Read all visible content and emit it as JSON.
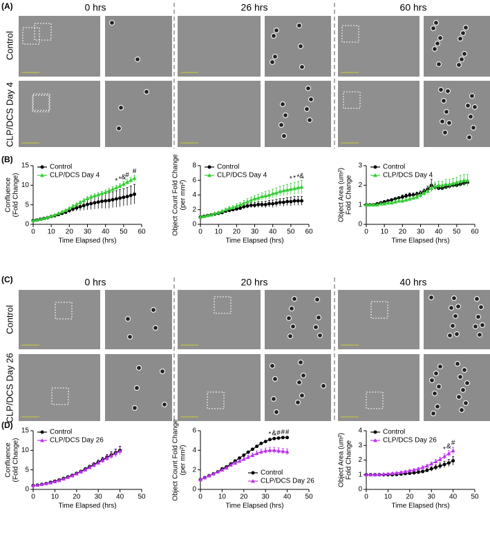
{
  "panels": [
    "(A)",
    "(B)",
    "(C)",
    "(D)"
  ],
  "headers_a": [
    "0 hrs",
    "26 hrs",
    "60 hrs"
  ],
  "headers_c": [
    "0 hrs",
    "20 hrs",
    "40 hrs"
  ],
  "rows_a": [
    "Control",
    "CLP/DCS Day 4"
  ],
  "rows_c": [
    "Control",
    "CLP/DCS Day 26"
  ],
  "chart_data": [
    {
      "type": "line",
      "y_label": [
        "Confluence",
        "(Fold Change)"
      ],
      "x_label": "Time Elapsed (hrs)",
      "x": [
        0,
        2,
        4,
        6,
        8,
        10,
        12,
        14,
        16,
        18,
        20,
        22,
        24,
        26,
        28,
        30,
        32,
        34,
        36,
        38,
        40,
        42,
        44,
        46,
        48,
        50,
        52,
        54,
        56
      ],
      "xlim": [
        0,
        60
      ],
      "xticks": [
        0,
        10,
        20,
        30,
        40,
        50,
        60
      ],
      "ylim": [
        0,
        15
      ],
      "yticks": [
        0,
        5,
        10,
        15
      ],
      "legend": "upper left",
      "series": [
        {
          "name": "Control",
          "color": "#000000",
          "marker": "circle",
          "values": [
            1,
            1.1,
            1.3,
            1.5,
            1.7,
            2,
            2.2,
            2.5,
            2.8,
            3.1,
            3.5,
            3.9,
            4.2,
            4.5,
            4.8,
            5.1,
            5.3,
            5.5,
            5.7,
            5.9,
            6,
            6.1,
            6.3,
            6.5,
            6.7,
            6.9,
            7.1,
            7.4,
            7.7
          ],
          "errors": [
            0.1,
            0.1,
            0.1,
            0.1,
            0.1,
            0.2,
            0.2,
            0.3,
            0.3,
            0.4,
            0.5,
            0.6,
            0.8,
            1,
            1.2,
            1.4,
            1.5,
            1.6,
            1.7,
            1.8,
            1.9,
            2,
            2,
            2.1,
            2.2,
            2.2,
            2.3,
            2.4,
            2.5
          ]
        },
        {
          "name": "CLP/DCS Day 4",
          "color": "#33cc33",
          "marker": "triangle",
          "values": [
            1,
            1.1,
            1.3,
            1.5,
            1.8,
            2.1,
            2.4,
            2.8,
            3.2,
            3.6,
            4.1,
            4.6,
            5.1,
            5.6,
            6.1,
            6.6,
            7,
            7.3,
            7.6,
            7.9,
            8.2,
            8.6,
            9,
            9.4,
            9.8,
            10.3,
            10.8,
            11.3,
            11.8
          ],
          "errors": [
            0.1,
            0.1,
            0.1,
            0.1,
            0.1,
            0.2,
            0.2,
            0.2,
            0.3,
            0.3,
            0.3,
            0.4,
            0.4,
            0.4,
            0.5,
            0.5,
            0.5,
            0.5,
            0.5,
            0.5,
            0.6,
            0.6,
            0.6,
            0.6,
            0.6,
            0.7,
            0.7,
            0.7,
            0.7
          ]
        }
      ],
      "annotations": [
        {
          "x": 46,
          "label": "*"
        },
        {
          "x": 48,
          "label": "*"
        },
        {
          "x": 50,
          "label": "&"
        },
        {
          "x": 52,
          "label": "#"
        },
        {
          "x": 56,
          "label": "#"
        }
      ]
    },
    {
      "type": "line",
      "y_label": [
        "Object Count Fold Change",
        "(per mm²)"
      ],
      "x_label": "Time Elapsed (hrs)",
      "x": [
        0,
        2,
        4,
        6,
        8,
        10,
        12,
        14,
        16,
        18,
        20,
        22,
        24,
        26,
        28,
        30,
        32,
        34,
        36,
        38,
        40,
        42,
        44,
        46,
        48,
        50,
        52,
        54,
        56
      ],
      "xlim": [
        0,
        60
      ],
      "xticks": [
        0,
        10,
        20,
        30,
        40,
        50,
        60
      ],
      "ylim": [
        0,
        8
      ],
      "yticks": [
        0,
        2,
        4,
        6,
        8
      ],
      "legend": "upper left",
      "series": [
        {
          "name": "Control",
          "color": "#000000",
          "marker": "circle",
          "values": [
            1,
            1.1,
            1.2,
            1.3,
            1.4,
            1.5,
            1.6,
            1.8,
            1.9,
            2,
            2.1,
            2.2,
            2.4,
            2.5,
            2.6,
            2.6,
            2.7,
            2.7,
            2.7,
            2.8,
            2.8,
            2.9,
            3,
            3,
            3.1,
            3.1,
            3.2,
            3.2,
            3.2
          ],
          "errors": [
            0.05,
            0.05,
            0.05,
            0.1,
            0.1,
            0.1,
            0.1,
            0.15,
            0.15,
            0.2,
            0.2,
            0.25,
            0.3,
            0.3,
            0.35,
            0.35,
            0.4,
            0.4,
            0.45,
            0.45,
            0.5,
            0.5,
            0.5,
            0.55,
            0.55,
            0.6,
            0.6,
            0.6,
            0.6
          ]
        },
        {
          "name": "CLP/DCS Day 4",
          "color": "#33cc33",
          "marker": "triangle",
          "values": [
            1,
            1.1,
            1.2,
            1.3,
            1.5,
            1.6,
            1.8,
            2,
            2.2,
            2.3,
            2.5,
            2.7,
            2.9,
            3.1,
            3.3,
            3.5,
            3.6,
            3.8,
            3.9,
            4,
            4.2,
            4.3,
            4.5,
            4.6,
            4.7,
            4.8,
            4.9,
            5,
            5.1
          ],
          "errors": [
            0.05,
            0.05,
            0.1,
            0.1,
            0.1,
            0.15,
            0.15,
            0.2,
            0.2,
            0.25,
            0.3,
            0.3,
            0.35,
            0.4,
            0.4,
            0.45,
            0.5,
            0.5,
            0.55,
            0.6,
            0.6,
            0.65,
            0.7,
            0.7,
            0.75,
            0.8,
            0.8,
            0.85,
            0.9
          ]
        }
      ],
      "annotations": [
        {
          "x": 50,
          "label": "*"
        },
        {
          "x": 52,
          "label": "*"
        },
        {
          "x": 54,
          "label": "*"
        },
        {
          "x": 56,
          "label": "&"
        }
      ]
    },
    {
      "type": "line",
      "y_label": [
        "Object Area (um²)",
        "Fold Change"
      ],
      "x_label": "Time Elapsed (hrs)",
      "x": [
        0,
        2,
        4,
        6,
        8,
        10,
        12,
        14,
        16,
        18,
        20,
        22,
        24,
        26,
        28,
        30,
        32,
        34,
        36,
        38,
        40,
        42,
        44,
        46,
        48,
        50,
        52,
        54,
        56
      ],
      "xlim": [
        0,
        60
      ],
      "xticks": [
        0,
        10,
        20,
        30,
        40,
        50,
        60
      ],
      "ylim": [
        0,
        3
      ],
      "yticks": [
        0,
        1,
        2,
        3
      ],
      "legend": "upper left",
      "series": [
        {
          "name": "Control",
          "color": "#000000",
          "marker": "circle",
          "values": [
            1,
            1,
            1,
            1.05,
            1.1,
            1.15,
            1.2,
            1.25,
            1.3,
            1.35,
            1.4,
            1.45,
            1.5,
            1.5,
            1.55,
            1.6,
            1.7,
            1.8,
            2,
            1.9,
            1.85,
            1.85,
            1.9,
            1.95,
            2,
            2,
            2.05,
            2.1,
            2.15
          ],
          "errors": [
            0.05,
            0.05,
            0.05,
            0.05,
            0.05,
            0.05,
            0.05,
            0.05,
            0.05,
            0.05,
            0.1,
            0.1,
            0.1,
            0.1,
            0.1,
            0.1,
            0.1,
            0.15,
            0.3,
            0.15,
            0.1,
            0.1,
            0.1,
            0.1,
            0.1,
            0.1,
            0.1,
            0.1,
            0.1
          ]
        },
        {
          "name": "CLP/DCS Day 4",
          "color": "#33cc33",
          "marker": "triangle",
          "values": [
            1,
            1,
            1,
            1,
            1.05,
            1.05,
            1.1,
            1.1,
            1.15,
            1.2,
            1.2,
            1.25,
            1.3,
            1.35,
            1.4,
            1.5,
            1.6,
            1.7,
            1.85,
            1.95,
            2,
            2,
            2.05,
            2.05,
            2.1,
            2.15,
            2.2,
            2.25,
            2.25
          ],
          "errors": [
            0.05,
            0.05,
            0.05,
            0.05,
            0.05,
            0.05,
            0.05,
            0.05,
            0.1,
            0.1,
            0.1,
            0.1,
            0.1,
            0.1,
            0.15,
            0.15,
            0.15,
            0.2,
            0.2,
            0.2,
            0.2,
            0.2,
            0.25,
            0.25,
            0.25,
            0.25,
            0.3,
            0.3,
            0.3
          ]
        }
      ],
      "annotations": []
    },
    {
      "type": "line",
      "y_label": [
        "Confluence",
        "(Fold Change)"
      ],
      "x_label": "Time Elapsed (hrs)",
      "x": [
        0,
        2,
        4,
        6,
        8,
        10,
        12,
        14,
        16,
        18,
        20,
        22,
        24,
        26,
        28,
        30,
        32,
        34,
        36,
        38,
        40
      ],
      "xlim": [
        0,
        50
      ],
      "xticks": [
        0,
        10,
        20,
        30,
        40,
        50
      ],
      "ylim": [
        0,
        15
      ],
      "yticks": [
        0,
        5,
        10,
        15
      ],
      "legend": "upper left",
      "series": [
        {
          "name": "Control",
          "color": "#000000",
          "marker": "circle",
          "values": [
            1,
            1.1,
            1.3,
            1.5,
            1.8,
            2.1,
            2.4,
            2.8,
            3.2,
            3.6,
            4.1,
            4.6,
            5.2,
            5.8,
            6.4,
            7,
            7.6,
            8.2,
            8.8,
            9.4,
            10
          ],
          "errors": [
            0.05,
            0.05,
            0.1,
            0.1,
            0.1,
            0.1,
            0.15,
            0.15,
            0.2,
            0.2,
            0.25,
            0.3,
            0.35,
            0.4,
            0.45,
            0.5,
            0.6,
            0.7,
            0.8,
            0.9,
            1
          ]
        },
        {
          "name": "CLP/DCS Day 26",
          "color": "#bb33ee",
          "marker": "triangle",
          "values": [
            1,
            1.1,
            1.3,
            1.5,
            1.7,
            2,
            2.3,
            2.7,
            3.1,
            3.5,
            4,
            4.5,
            5,
            5.6,
            6.2,
            6.8,
            7.4,
            8,
            8.6,
            9.2,
            9.8
          ],
          "errors": [
            0.05,
            0.05,
            0.1,
            0.1,
            0.1,
            0.1,
            0.15,
            0.15,
            0.2,
            0.2,
            0.25,
            0.3,
            0.35,
            0.4,
            0.45,
            0.5,
            0.6,
            0.7,
            0.8,
            0.9,
            1
          ]
        }
      ],
      "annotations": []
    },
    {
      "type": "line",
      "y_label": [
        "Object Count Fold Change",
        "(per mm²)"
      ],
      "x_label": "Time Elapsed (hrs)",
      "x": [
        0,
        2,
        4,
        6,
        8,
        10,
        12,
        14,
        16,
        18,
        20,
        22,
        24,
        26,
        28,
        30,
        32,
        34,
        36,
        38,
        40
      ],
      "xlim": [
        0,
        50
      ],
      "xticks": [
        0,
        10,
        20,
        30,
        40,
        50
      ],
      "ylim": [
        0,
        6
      ],
      "yticks": [
        0,
        2,
        4,
        6
      ],
      "legend": "lower right",
      "series": [
        {
          "name": "Control",
          "color": "#000000",
          "marker": "circle",
          "values": [
            1,
            1.2,
            1.4,
            1.6,
            1.8,
            2.1,
            2.3,
            2.6,
            2.9,
            3.2,
            3.5,
            3.8,
            4.1,
            4.4,
            4.7,
            4.9,
            5.1,
            5.2,
            5.25,
            5.3,
            5.3
          ],
          "errors": [
            0.02,
            0.03,
            0.03,
            0.04,
            0.05,
            0.05,
            0.06,
            0.07,
            0.08,
            0.08,
            0.09,
            0.1,
            0.1,
            0.1,
            0.1,
            0.1,
            0.1,
            0.1,
            0.1,
            0.1,
            0.1
          ]
        },
        {
          "name": "CLP/DCS Day 26",
          "color": "#bb33ee",
          "marker": "triangle",
          "values": [
            1,
            1.2,
            1.4,
            1.6,
            1.8,
            2,
            2.2,
            2.5,
            2.7,
            2.9,
            3.1,
            3.3,
            3.5,
            3.7,
            3.85,
            3.95,
            4,
            4,
            3.95,
            3.9,
            3.85
          ],
          "errors": [
            0.02,
            0.03,
            0.04,
            0.05,
            0.06,
            0.08,
            0.1,
            0.12,
            0.14,
            0.16,
            0.18,
            0.2,
            0.22,
            0.24,
            0.26,
            0.28,
            0.3,
            0.3,
            0.3,
            0.3,
            0.3
          ]
        }
      ],
      "annotations": [
        {
          "x": 32,
          "label": "*"
        },
        {
          "x": 34,
          "label": "&"
        },
        {
          "x": 36,
          "label": "#"
        },
        {
          "x": 38,
          "label": "#"
        },
        {
          "x": 40,
          "label": "#"
        }
      ]
    },
    {
      "type": "line",
      "y_label": [
        "Object Area (um²)",
        "Fold Change"
      ],
      "x_label": "Time Elapsed (hrs)",
      "x": [
        0,
        2,
        4,
        6,
        8,
        10,
        12,
        14,
        16,
        18,
        20,
        22,
        24,
        26,
        28,
        30,
        32,
        34,
        36,
        38,
        40
      ],
      "xlim": [
        0,
        50
      ],
      "xticks": [
        0,
        10,
        20,
        30,
        40,
        50
      ],
      "ylim": [
        0,
        4
      ],
      "yticks": [
        0,
        1,
        2,
        3,
        4
      ],
      "legend": "upper left",
      "series": [
        {
          "name": "Control",
          "color": "#000000",
          "marker": "circle",
          "values": [
            1,
            1,
            1,
            1,
            1,
            1,
            1,
            1.02,
            1.05,
            1.08,
            1.1,
            1.13,
            1.17,
            1.22,
            1.3,
            1.4,
            1.5,
            1.6,
            1.7,
            1.8,
            1.95
          ],
          "errors": [
            0.02,
            0.02,
            0.02,
            0.02,
            0.03,
            0.03,
            0.04,
            0.05,
            0.05,
            0.06,
            0.07,
            0.08,
            0.09,
            0.1,
            0.12,
            0.15,
            0.18,
            0.2,
            0.22,
            0.25,
            0.3
          ]
        },
        {
          "name": "CLP/DCS Day 26",
          "color": "#bb33ee",
          "marker": "triangle",
          "values": [
            1,
            1,
            1,
            1.02,
            1.05,
            1.07,
            1.1,
            1.13,
            1.17,
            1.22,
            1.27,
            1.33,
            1.4,
            1.5,
            1.6,
            1.75,
            1.9,
            2.05,
            2.25,
            2.45,
            2.65
          ],
          "errors": [
            0.02,
            0.02,
            0.02,
            0.02,
            0.03,
            0.03,
            0.04,
            0.05,
            0.05,
            0.06,
            0.07,
            0.08,
            0.09,
            0.1,
            0.1,
            0.12,
            0.14,
            0.15,
            0.18,
            0.2,
            0.22
          ]
        }
      ],
      "annotations": [
        {
          "x": 36,
          "label": "*"
        },
        {
          "x": 38,
          "label": "&"
        },
        {
          "x": 40,
          "label": "#"
        }
      ]
    }
  ]
}
